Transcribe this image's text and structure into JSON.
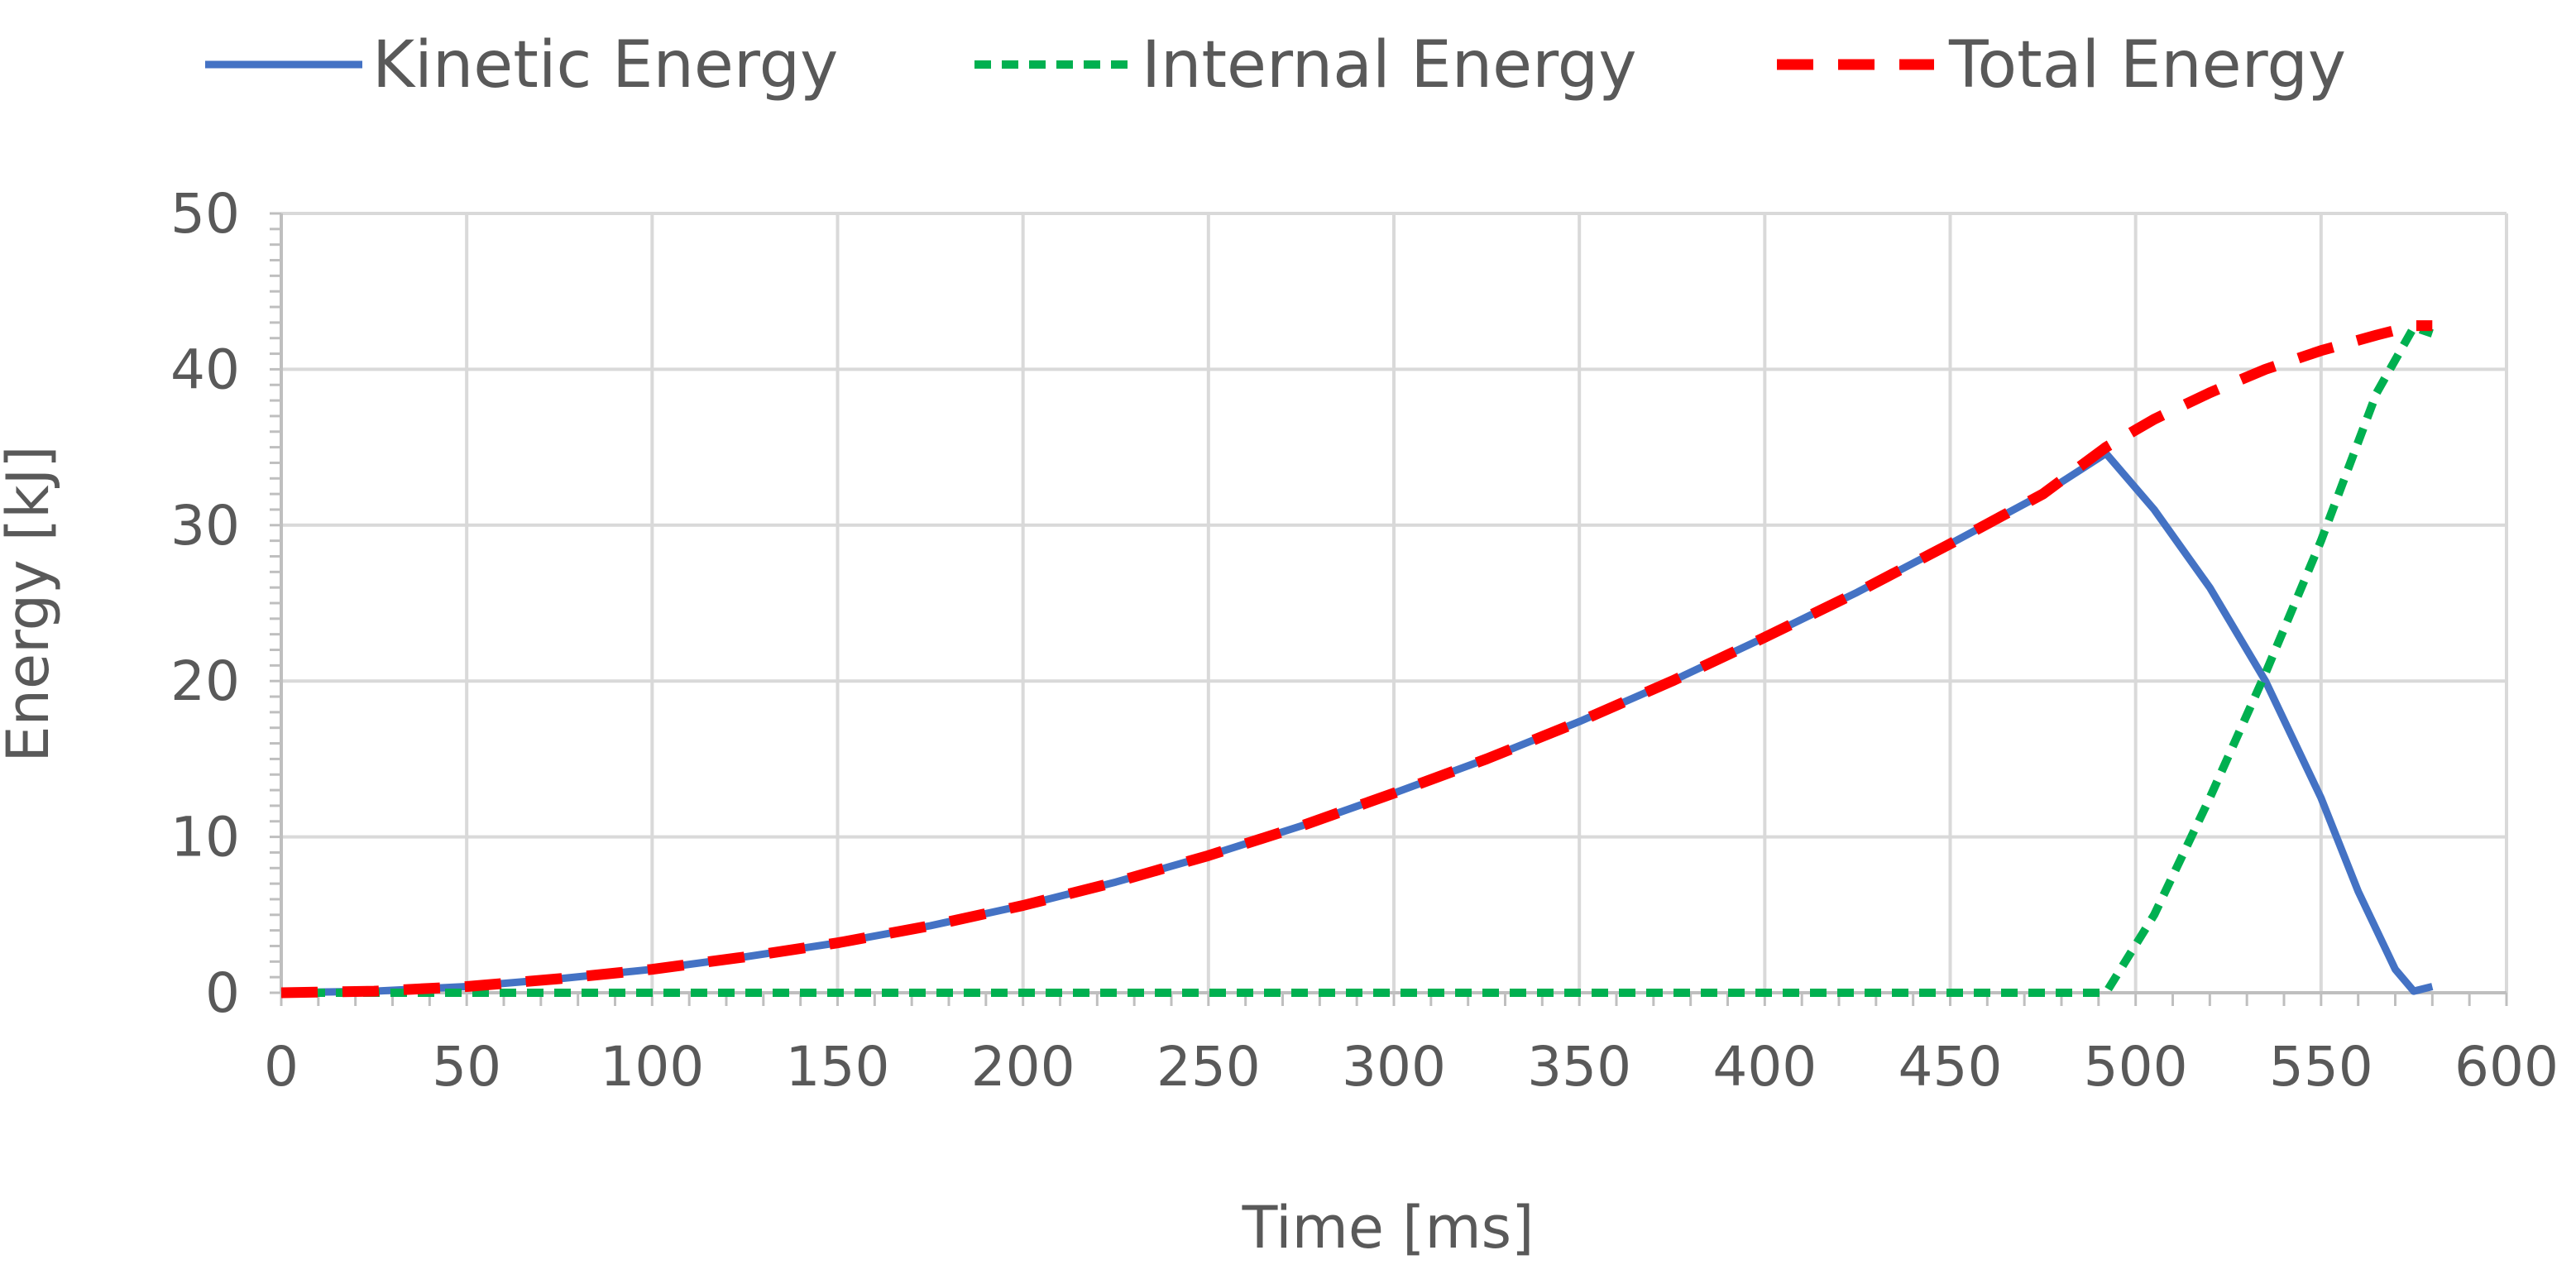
{
  "chart_data": {
    "type": "line",
    "title": "",
    "xlabel": "Time [ms]",
    "ylabel": "Energy [kJ]",
    "xlim": [
      0,
      600
    ],
    "ylim": [
      0,
      50
    ],
    "x_ticks": [
      0,
      50,
      100,
      150,
      200,
      250,
      300,
      350,
      400,
      450,
      500,
      550,
      600
    ],
    "x_tick_labels": [
      "0",
      "50",
      "100",
      "150",
      "200",
      "250",
      "300",
      "350",
      "400",
      "450",
      "500",
      "550",
      "600"
    ],
    "y_ticks": [
      0,
      10,
      20,
      30,
      40,
      50
    ],
    "y_tick_labels": [
      "0",
      "10",
      "20",
      "30",
      "40",
      "50"
    ],
    "grid": true,
    "legend_position": "top",
    "series": [
      {
        "name": "Kinetic Energy",
        "color": "#4472C4",
        "style": "solid",
        "x": [
          0,
          25,
          50,
          75,
          100,
          125,
          150,
          175,
          200,
          225,
          250,
          275,
          300,
          325,
          350,
          375,
          400,
          425,
          450,
          475,
          492,
          505,
          520,
          535,
          550,
          560,
          570,
          575,
          580
        ],
        "y": [
          0,
          0.1,
          0.4,
          0.9,
          1.5,
          2.3,
          3.2,
          4.3,
          5.6,
          7.1,
          8.8,
          10.7,
          12.8,
          15.0,
          17.4,
          20.0,
          22.8,
          25.7,
          28.8,
          32.0,
          34.6,
          31.0,
          26.0,
          20.0,
          12.5,
          6.5,
          1.5,
          0.1,
          0.4
        ]
      },
      {
        "name": "Internal Energy",
        "color": "#00B050",
        "style": "dotted",
        "x": [
          0,
          100,
          200,
          300,
          400,
          492,
          505,
          520,
          535,
          550,
          565,
          575,
          580
        ],
        "y": [
          0,
          0,
          0,
          0,
          0,
          0,
          5.0,
          12.5,
          20.5,
          29.0,
          38.5,
          42.7,
          42.3
        ]
      },
      {
        "name": "Total Energy",
        "color": "#FF0000",
        "style": "dashed",
        "x": [
          0,
          25,
          50,
          75,
          100,
          125,
          150,
          175,
          200,
          225,
          250,
          275,
          300,
          325,
          350,
          375,
          400,
          425,
          450,
          475,
          492,
          505,
          520,
          535,
          550,
          565,
          575,
          580
        ],
        "y": [
          0,
          0.1,
          0.4,
          0.9,
          1.5,
          2.3,
          3.2,
          4.3,
          5.6,
          7.1,
          8.8,
          10.7,
          12.8,
          15.0,
          17.4,
          20.0,
          22.8,
          25.7,
          28.8,
          32.0,
          35.0,
          36.8,
          38.5,
          40.0,
          41.2,
          42.2,
          42.8,
          42.8
        ]
      }
    ]
  }
}
